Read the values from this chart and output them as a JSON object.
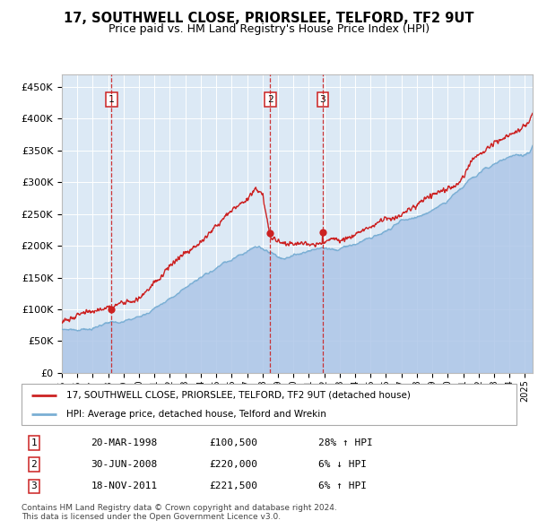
{
  "title_line1": "17, SOUTHWELL CLOSE, PRIORSLEE, TELFORD, TF2 9UT",
  "title_line2": "Price paid vs. HM Land Registry's House Price Index (HPI)",
  "ylabel_ticks": [
    "£0",
    "£50K",
    "£100K",
    "£150K",
    "£200K",
    "£250K",
    "£300K",
    "£350K",
    "£400K",
    "£450K"
  ],
  "ylabel_values": [
    0,
    50000,
    100000,
    150000,
    200000,
    250000,
    300000,
    350000,
    400000,
    450000
  ],
  "ylim": [
    0,
    470000
  ],
  "xlim_start": 1995.0,
  "xlim_end": 2025.5,
  "x_ticks": [
    1995,
    1996,
    1997,
    1998,
    1999,
    2000,
    2001,
    2002,
    2003,
    2004,
    2005,
    2006,
    2007,
    2008,
    2009,
    2010,
    2011,
    2012,
    2013,
    2014,
    2015,
    2016,
    2017,
    2018,
    2019,
    2020,
    2021,
    2022,
    2023,
    2024,
    2025
  ],
  "hpi_color": "#aec6e8",
  "hpi_line_color": "#7aafd4",
  "price_color": "#cc2222",
  "plot_bg": "#dce9f5",
  "grid_color": "#ffffff",
  "sale_points": [
    {
      "label": "1",
      "year": 1998.22,
      "price": 100500,
      "date": "20-MAR-1998",
      "amount": "£100,500",
      "pct": "28%",
      "dir": "↑"
    },
    {
      "label": "2",
      "year": 2008.5,
      "price": 220000,
      "date": "30-JUN-2008",
      "amount": "£220,000",
      "pct": "6%",
      "dir": "↓"
    },
    {
      "label": "3",
      "year": 2011.89,
      "price": 221500,
      "date": "18-NOV-2011",
      "amount": "£221,500",
      "pct": "6%",
      "dir": "↑"
    }
  ],
  "legend_line1": "17, SOUTHWELL CLOSE, PRIORSLEE, TELFORD, TF2 9UT (detached house)",
  "legend_line2": "HPI: Average price, detached house, Telford and Wrekin",
  "footnote": "Contains HM Land Registry data © Crown copyright and database right 2024.\nThis data is licensed under the Open Government Licence v3.0.",
  "vline_color": "#cc2222"
}
